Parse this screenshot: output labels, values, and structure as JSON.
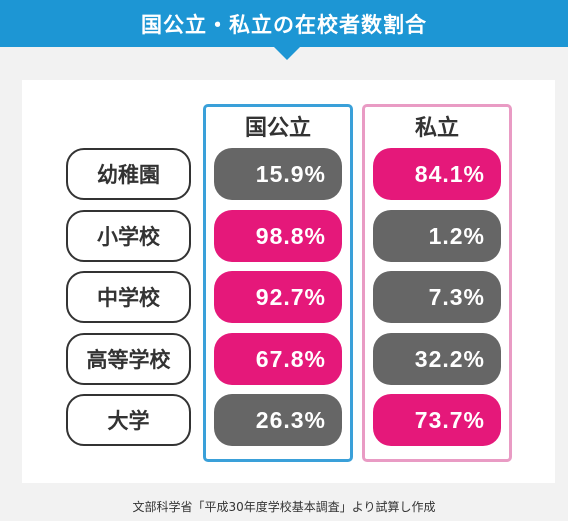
{
  "title": "国公立・私立の在校者数割合",
  "columns": {
    "public": "国公立",
    "private": "私立"
  },
  "rows": [
    {
      "label": "幼稚園",
      "public": "15.9%",
      "private": "84.1%",
      "highlight": "private"
    },
    {
      "label": "小学校",
      "public": "98.8%",
      "private": "1.2%",
      "highlight": "public"
    },
    {
      "label": "中学校",
      "public": "92.7%",
      "private": "7.3%",
      "highlight": "public"
    },
    {
      "label": "高等学校",
      "public": "67.8%",
      "private": "32.2%",
      "highlight": "public"
    },
    {
      "label": "大学",
      "public": "26.3%",
      "private": "73.7%",
      "highlight": "private"
    }
  ],
  "source": "文部科学省「平成30年度学校基本調査」より試算し作成",
  "colors": {
    "header": "#1d96d4",
    "highlight": "#e5187a",
    "muted": "#666666",
    "public_border": "#3aa0d9",
    "private_border": "#e99bc4"
  }
}
